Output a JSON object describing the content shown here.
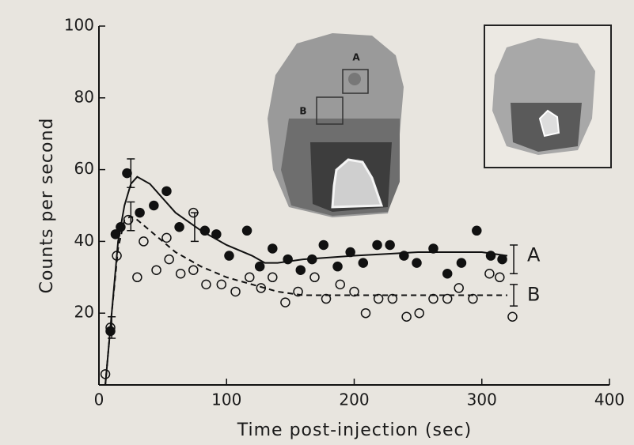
{
  "chart_data": {
    "type": "scatter",
    "x_label": "Time post-injection (sec)",
    "y_label": "Counts per second",
    "xlim": [
      0,
      400
    ],
    "xticks": [
      0,
      100,
      200,
      300,
      400
    ],
    "ylim": [
      0,
      100
    ],
    "yticks": [
      20,
      40,
      60,
      80,
      100
    ],
    "inset_labels": [
      "A",
      "B"
    ],
    "series": [
      {
        "name": "A",
        "color": "#111111",
        "marker": "filled",
        "x": [
          9,
          13,
          17,
          22,
          32,
          43,
          53,
          63,
          83,
          92,
          102,
          116,
          126,
          136,
          148,
          158,
          167,
          176,
          187,
          197,
          207,
          218,
          228,
          239,
          249,
          262,
          273,
          284,
          296,
          307,
          316
        ],
        "values": [
          15,
          42,
          44,
          59,
          48,
          50,
          54,
          44,
          43,
          42,
          36,
          43,
          33,
          38,
          35,
          32,
          35,
          39,
          33,
          37,
          34,
          39,
          39,
          36,
          34,
          38,
          31,
          34,
          43,
          36,
          35
        ],
        "fit": {
          "style": "solid",
          "x": [
            5,
            10,
            15,
            20,
            25,
            30,
            40,
            50,
            60,
            80,
            100,
            120,
            130,
            140,
            160,
            200,
            250,
            300,
            320
          ],
          "values": [
            0,
            20,
            40,
            50,
            56,
            58,
            56,
            52,
            48,
            43,
            39,
            36,
            34,
            34,
            35,
            36,
            37,
            37,
            36
          ]
        },
        "error_bars": [
          {
            "x": 25,
            "value": 59,
            "error": 4
          },
          {
            "x": 325,
            "value": 35,
            "error": 4
          }
        ]
      },
      {
        "name": "B",
        "color": "#111111",
        "marker": "open",
        "x": [
          5,
          9,
          14,
          23,
          30,
          35,
          45,
          53,
          55,
          64,
          74,
          74,
          84,
          96,
          107,
          118,
          127,
          136,
          146,
          156,
          169,
          178,
          189,
          200,
          209,
          219,
          230,
          241,
          251,
          262,
          273,
          282,
          293,
          306,
          314,
          324
        ],
        "values": [
          3,
          16,
          36,
          46,
          30,
          40,
          32,
          41,
          35,
          31,
          48,
          32,
          28,
          28,
          26,
          30,
          27,
          30,
          23,
          26,
          30,
          24,
          28,
          26,
          20,
          24,
          24,
          19,
          20,
          24,
          24,
          27,
          24,
          31,
          30,
          19
        ],
        "fit": {
          "style": "dashed",
          "x": [
            5,
            10,
            15,
            20,
            25,
            30,
            40,
            50,
            60,
            80,
            100,
            120,
            130,
            140,
            160,
            200,
            250,
            300,
            320
          ],
          "values": [
            0,
            20,
            38,
            46,
            47,
            46,
            43,
            40,
            37,
            33,
            30,
            28,
            27,
            26,
            25,
            25,
            25,
            25,
            25
          ]
        },
        "error_bars": [
          {
            "x": 10,
            "value": 16,
            "error": 3
          },
          {
            "x": 25,
            "value": 47,
            "error": 4
          },
          {
            "x": 75,
            "value": 44,
            "error": 4
          },
          {
            "x": 325,
            "value": 25,
            "error": 3
          }
        ]
      }
    ]
  }
}
